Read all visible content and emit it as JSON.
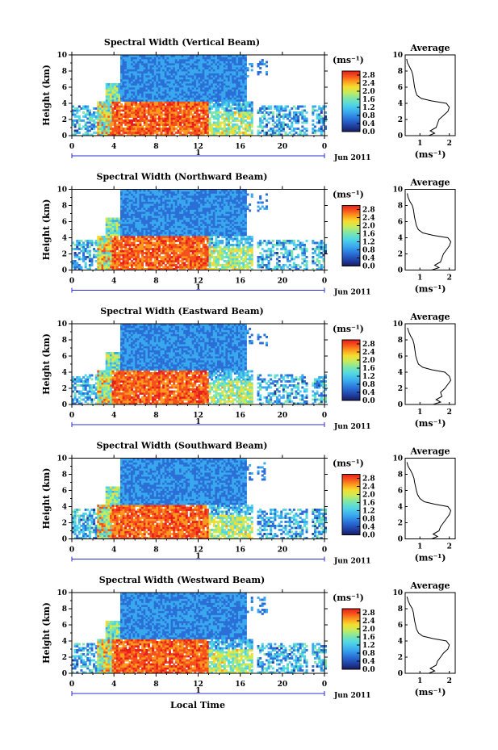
{
  "chart_data": [
    {
      "type": "heatmap",
      "title": "Spectral Width (Vertical Beam)",
      "ylabel": "Height (km)",
      "ylim": [
        0,
        10
      ],
      "yticks": [
        "0",
        "2",
        "4",
        "6",
        "8",
        "10"
      ],
      "xticks": [
        "0",
        "4",
        "8",
        "12",
        "16",
        "20",
        "0"
      ],
      "xlim": [
        0,
        24
      ],
      "date_row": {
        "left": "",
        "mid": "1",
        "right": "Jun 2011"
      },
      "colorbar": {
        "unit": "(ms⁻¹)",
        "range": [
          0,
          3.0
        ],
        "ticks": [
          "2.8",
          "2.4",
          "2.0",
          "1.6",
          "1.2",
          "0.8",
          "0.4",
          "0.0"
        ]
      },
      "average": {
        "title": "Average",
        "xlabel": "(ms⁻¹)",
        "xticks": [
          "1",
          "2"
        ],
        "yticks": [
          "0",
          "2",
          "4",
          "6",
          "8",
          "10"
        ],
        "xlim": [
          0.5,
          2.2
        ],
        "profile": [
          {
            "h": 0.0,
            "w": 1.3
          },
          {
            "h": 0.3,
            "w": 1.5
          },
          {
            "h": 0.6,
            "w": 1.35
          },
          {
            "h": 1.0,
            "w": 1.55
          },
          {
            "h": 1.5,
            "w": 1.6
          },
          {
            "h": 2.0,
            "w": 1.65
          },
          {
            "h": 2.5,
            "w": 1.8
          },
          {
            "h": 3.0,
            "w": 1.95
          },
          {
            "h": 3.5,
            "w": 2.0
          },
          {
            "h": 4.0,
            "w": 1.9
          },
          {
            "h": 4.3,
            "w": 1.4
          },
          {
            "h": 4.6,
            "w": 1.05
          },
          {
            "h": 5.0,
            "w": 0.9
          },
          {
            "h": 5.5,
            "w": 0.85
          },
          {
            "h": 6.0,
            "w": 0.82
          },
          {
            "h": 6.5,
            "w": 0.8
          },
          {
            "h": 7.0,
            "w": 0.78
          },
          {
            "h": 7.5,
            "w": 0.76
          },
          {
            "h": 8.0,
            "w": 0.72
          },
          {
            "h": 8.5,
            "w": 0.65
          },
          {
            "h": 9.0,
            "w": 0.58
          },
          {
            "h": 9.5,
            "w": 0.55
          }
        ]
      }
    },
    {
      "type": "heatmap",
      "title": "Spectral Width (Northward Beam)",
      "ylabel": "Height (km)",
      "ylim": [
        0,
        10
      ],
      "yticks": [
        "0",
        "2",
        "4",
        "6",
        "8",
        "10"
      ],
      "xticks": [
        "0",
        "4",
        "8",
        "12",
        "16",
        "20",
        "0"
      ],
      "xlim": [
        0,
        24
      ],
      "date_row": {
        "left": "",
        "mid": "1",
        "right": "Jun 2011"
      },
      "colorbar": {
        "unit": "(ms⁻¹)",
        "range": [
          0,
          3.0
        ],
        "ticks": [
          "2.8",
          "2.4",
          "2.0",
          "1.6",
          "1.2",
          "0.8",
          "0.4",
          "0.0"
        ]
      },
      "average": {
        "title": "Average",
        "xlabel": "(ms⁻¹)",
        "xticks": [
          "1",
          "2"
        ],
        "yticks": [
          "0",
          "2",
          "4",
          "6",
          "8",
          "10"
        ],
        "xlim": [
          0.5,
          2.2
        ],
        "profile": [
          {
            "h": 0.0,
            "w": 1.4
          },
          {
            "h": 0.3,
            "w": 1.65
          },
          {
            "h": 0.6,
            "w": 1.5
          },
          {
            "h": 1.0,
            "w": 1.7
          },
          {
            "h": 1.5,
            "w": 1.75
          },
          {
            "h": 2.0,
            "w": 1.8
          },
          {
            "h": 2.5,
            "w": 1.9
          },
          {
            "h": 3.0,
            "w": 2.0
          },
          {
            "h": 3.5,
            "w": 2.05
          },
          {
            "h": 4.0,
            "w": 1.95
          },
          {
            "h": 4.3,
            "w": 1.45
          },
          {
            "h": 4.6,
            "w": 1.1
          },
          {
            "h": 5.0,
            "w": 0.95
          },
          {
            "h": 5.5,
            "w": 0.88
          },
          {
            "h": 6.0,
            "w": 0.85
          },
          {
            "h": 6.5,
            "w": 0.82
          },
          {
            "h": 7.0,
            "w": 0.8
          },
          {
            "h": 7.5,
            "w": 0.78
          },
          {
            "h": 8.0,
            "w": 0.74
          },
          {
            "h": 8.5,
            "w": 0.66
          },
          {
            "h": 9.0,
            "w": 0.6
          },
          {
            "h": 9.5,
            "w": 0.57
          }
        ]
      }
    },
    {
      "type": "heatmap",
      "title": "Spectral Width (Eastward Beam)",
      "ylabel": "Height (km)",
      "ylim": [
        0,
        10
      ],
      "yticks": [
        "0",
        "2",
        "4",
        "6",
        "8",
        "10"
      ],
      "xticks": [
        "0",
        "4",
        "8",
        "12",
        "16",
        "20",
        "0"
      ],
      "xlim": [
        0,
        24
      ],
      "date_row": {
        "left": "",
        "mid": "1",
        "right": "Jun 2011"
      },
      "colorbar": {
        "unit": "(ms⁻¹)",
        "range": [
          0,
          3.0
        ],
        "ticks": [
          "2.8",
          "2.4",
          "2.0",
          "1.6",
          "1.2",
          "0.8",
          "0.4",
          "0.0"
        ]
      },
      "average": {
        "title": "Average",
        "xlabel": "(ms⁻¹)",
        "xticks": [
          "1",
          "2"
        ],
        "yticks": [
          "0",
          "2",
          "4",
          "6",
          "8",
          "10"
        ],
        "xlim": [
          0.5,
          2.2
        ],
        "profile": [
          {
            "h": 0.0,
            "w": 1.45
          },
          {
            "h": 0.3,
            "w": 1.7
          },
          {
            "h": 0.6,
            "w": 1.55
          },
          {
            "h": 1.0,
            "w": 1.75
          },
          {
            "h": 1.5,
            "w": 1.7
          },
          {
            "h": 2.0,
            "w": 1.85
          },
          {
            "h": 2.5,
            "w": 1.95
          },
          {
            "h": 3.0,
            "w": 2.05
          },
          {
            "h": 3.5,
            "w": 2.0
          },
          {
            "h": 4.0,
            "w": 1.85
          },
          {
            "h": 4.3,
            "w": 1.4
          },
          {
            "h": 4.6,
            "w": 1.1
          },
          {
            "h": 5.0,
            "w": 0.95
          },
          {
            "h": 5.5,
            "w": 0.9
          },
          {
            "h": 6.0,
            "w": 0.86
          },
          {
            "h": 6.5,
            "w": 0.84
          },
          {
            "h": 7.0,
            "w": 0.82
          },
          {
            "h": 7.5,
            "w": 0.8
          },
          {
            "h": 8.0,
            "w": 0.76
          },
          {
            "h": 8.5,
            "w": 0.68
          },
          {
            "h": 9.0,
            "w": 0.62
          },
          {
            "h": 9.5,
            "w": 0.58
          }
        ]
      }
    },
    {
      "type": "heatmap",
      "title": "Spectral Width (Southward Beam)",
      "ylabel": "Height (km)",
      "ylim": [
        0,
        10
      ],
      "yticks": [
        "0",
        "2",
        "4",
        "6",
        "8",
        "10"
      ],
      "xticks": [
        "0",
        "4",
        "8",
        "12",
        "16",
        "20",
        "0"
      ],
      "xlim": [
        0,
        24
      ],
      "date_row": {
        "left": "",
        "mid": "1",
        "right": "Jun 2011"
      },
      "colorbar": {
        "unit": "(ms⁻¹)",
        "range": [
          0,
          3.0
        ],
        "ticks": [
          "2.8",
          "2.4",
          "2.0",
          "1.6",
          "1.2",
          "0.8",
          "0.4",
          "0.0"
        ]
      },
      "average": {
        "title": "Average",
        "xlabel": "(ms⁻¹)",
        "xticks": [
          "1",
          "2"
        ],
        "yticks": [
          "0",
          "2",
          "4",
          "6",
          "8",
          "10"
        ],
        "xlim": [
          0.5,
          2.2
        ],
        "profile": [
          {
            "h": 0.0,
            "w": 1.4
          },
          {
            "h": 0.3,
            "w": 1.6
          },
          {
            "h": 0.6,
            "w": 1.45
          },
          {
            "h": 1.0,
            "w": 1.65
          },
          {
            "h": 1.5,
            "w": 1.7
          },
          {
            "h": 2.0,
            "w": 1.8
          },
          {
            "h": 2.5,
            "w": 1.9
          },
          {
            "h": 3.0,
            "w": 2.0
          },
          {
            "h": 3.5,
            "w": 2.05
          },
          {
            "h": 4.0,
            "w": 1.95
          },
          {
            "h": 4.3,
            "w": 1.5
          },
          {
            "h": 4.6,
            "w": 1.15
          },
          {
            "h": 5.0,
            "w": 1.0
          },
          {
            "h": 5.5,
            "w": 0.92
          },
          {
            "h": 6.0,
            "w": 0.88
          },
          {
            "h": 6.5,
            "w": 0.85
          },
          {
            "h": 7.0,
            "w": 0.82
          },
          {
            "h": 7.5,
            "w": 0.8
          },
          {
            "h": 8.0,
            "w": 0.75
          },
          {
            "h": 8.5,
            "w": 0.68
          },
          {
            "h": 9.0,
            "w": 0.6
          },
          {
            "h": 9.5,
            "w": 0.56
          }
        ]
      }
    },
    {
      "type": "heatmap",
      "title": "Spectral Width (Westward Beam)",
      "ylabel": "Height (km)",
      "ylim": [
        0,
        10
      ],
      "yticks": [
        "0",
        "2",
        "4",
        "6",
        "8",
        "10"
      ],
      "xticks": [
        "0",
        "4",
        "8",
        "12",
        "16",
        "20",
        "0"
      ],
      "xlim": [
        0,
        24
      ],
      "date_row": {
        "left": "",
        "mid": "1",
        "right": "Jun 2011"
      },
      "colorbar": {
        "unit": "(ms⁻¹)",
        "range": [
          0,
          3.0
        ],
        "ticks": [
          "2.8",
          "2.4",
          "2.0",
          "1.6",
          "1.2",
          "0.8",
          "0.4",
          "0.0"
        ]
      },
      "average": {
        "title": "Average",
        "xlabel": "(ms⁻¹)",
        "xticks": [
          "1",
          "2"
        ],
        "yticks": [
          "0",
          "2",
          "4",
          "6",
          "8",
          "10"
        ],
        "xlim": [
          0.5,
          2.2
        ],
        "profile": [
          {
            "h": 0.0,
            "w": 1.3
          },
          {
            "h": 0.3,
            "w": 1.5
          },
          {
            "h": 0.6,
            "w": 1.35
          },
          {
            "h": 1.0,
            "w": 1.55
          },
          {
            "h": 1.5,
            "w": 1.6
          },
          {
            "h": 2.0,
            "w": 1.7
          },
          {
            "h": 2.5,
            "w": 1.8
          },
          {
            "h": 3.0,
            "w": 1.95
          },
          {
            "h": 3.5,
            "w": 2.0
          },
          {
            "h": 4.0,
            "w": 1.9
          },
          {
            "h": 4.3,
            "w": 1.45
          },
          {
            "h": 4.6,
            "w": 1.1
          },
          {
            "h": 5.0,
            "w": 0.95
          },
          {
            "h": 5.5,
            "w": 0.88
          },
          {
            "h": 6.0,
            "w": 0.85
          },
          {
            "h": 6.5,
            "w": 0.82
          },
          {
            "h": 7.0,
            "w": 0.8
          },
          {
            "h": 7.5,
            "w": 0.78
          },
          {
            "h": 8.0,
            "w": 0.74
          },
          {
            "h": 8.5,
            "w": 0.66
          },
          {
            "h": 9.0,
            "w": 0.6
          },
          {
            "h": 9.5,
            "w": 0.56
          }
        ]
      }
    }
  ],
  "xlabel_bottom": "Local Time",
  "colors": {
    "scale": [
      "#1a1a5e",
      "#1e3c9c",
      "#2a6ed6",
      "#39a8ee",
      "#4fd6e6",
      "#7fe6a8",
      "#c8ec5a",
      "#f6dc2e",
      "#fb9a1e",
      "#f6501c",
      "#e81e1e"
    ],
    "axis": "#000000",
    "date_arrow": "#2b2bd6"
  }
}
